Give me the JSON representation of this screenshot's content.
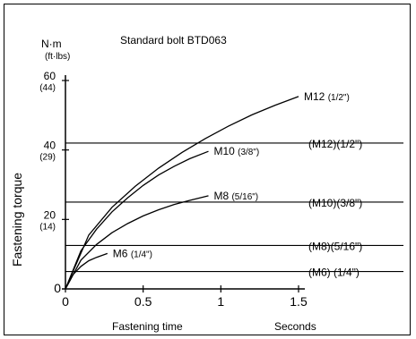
{
  "chart_data": {
    "type": "line",
    "title": "Standard bolt BTD063",
    "ylabel": "Fastening torque",
    "xlabel": "Fastening time",
    "xunit": "Seconds",
    "yunit_primary": "N·m",
    "yunit_secondary": "(ft·lbs)",
    "xlim": [
      0,
      1.5
    ],
    "ylim": [
      0,
      60
    ],
    "x_ticks": [
      {
        "value": 0,
        "label": "0"
      },
      {
        "value": 0.5,
        "label": "0.5"
      },
      {
        "value": 1,
        "label": "1"
      },
      {
        "value": 1.5,
        "label": "1.5"
      }
    ],
    "y_ticks": [
      {
        "value": 0,
        "label": "0",
        "sub": ""
      },
      {
        "value": 20,
        "label": "20",
        "sub": "(14)"
      },
      {
        "value": 40,
        "label": "40",
        "sub": "(29)"
      },
      {
        "value": 60,
        "label": "60",
        "sub": "(44)"
      }
    ],
    "series": [
      {
        "name": "M6",
        "size_label": "(1/4\")",
        "x": [
          0,
          0.05,
          0.1,
          0.15,
          0.2,
          0.27
        ],
        "y": [
          0,
          4.2,
          6.5,
          8.1,
          9.1,
          10.2
        ]
      },
      {
        "name": "M8",
        "size_label": "(5/16\")",
        "x": [
          0,
          0.1,
          0.2,
          0.3,
          0.4,
          0.5,
          0.6,
          0.7,
          0.8,
          0.92
        ],
        "y": [
          0,
          8.3,
          12.8,
          16.2,
          18.8,
          21.0,
          22.8,
          24.3,
          25.5,
          26.8
        ]
      },
      {
        "name": "M10",
        "size_label": "(3/8\")",
        "x": [
          0,
          0.1,
          0.2,
          0.3,
          0.4,
          0.5,
          0.6,
          0.7,
          0.8,
          0.92
        ],
        "y": [
          0,
          11.0,
          17.2,
          22.2,
          26.2,
          29.8,
          32.8,
          35.3,
          37.5,
          39.6
        ]
      },
      {
        "name": "M12",
        "size_label": "(1/2\")",
        "x": [
          0,
          0.15,
          0.3,
          0.45,
          0.6,
          0.75,
          0.9,
          1.05,
          1.2,
          1.35,
          1.5
        ],
        "y": [
          0,
          15.5,
          23.5,
          29.6,
          34.8,
          39.3,
          43.3,
          46.9,
          50.1,
          52.9,
          55.4
        ]
      }
    ],
    "reference_lines": [
      {
        "name": "(M12)(1/2\")",
        "y": 42
      },
      {
        "name": "(M10)(3/8\")",
        "y": 25
      },
      {
        "name": "(M8)(5/16\")",
        "y": 12.5
      },
      {
        "name": "(M6) (1/4\")",
        "y": 5
      }
    ]
  }
}
